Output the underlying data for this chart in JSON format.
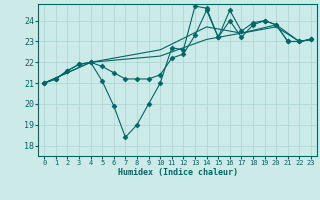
{
  "xlabel": "Humidex (Indice chaleur)",
  "xlim": [
    -0.5,
    23.5
  ],
  "ylim": [
    17.5,
    24.8
  ],
  "yticks": [
    18,
    19,
    20,
    21,
    22,
    23,
    24
  ],
  "xticks": [
    0,
    1,
    2,
    3,
    4,
    5,
    6,
    7,
    8,
    9,
    10,
    11,
    12,
    13,
    14,
    15,
    16,
    17,
    18,
    19,
    20,
    21,
    22,
    23
  ],
  "background_color": "#cceae8",
  "grid_color": "#aad4d0",
  "line_color": "#006666",
  "series": [
    {
      "x": [
        0,
        1,
        2,
        3,
        4,
        5,
        6,
        7,
        8,
        9,
        10,
        11,
        12,
        13,
        14,
        15,
        16,
        17,
        18,
        19,
        20,
        21,
        22,
        23
      ],
      "y": [
        21.0,
        21.2,
        21.6,
        21.9,
        22.0,
        21.1,
        19.9,
        18.4,
        19.0,
        20.0,
        21.0,
        22.7,
        22.6,
        24.7,
        24.6,
        23.2,
        24.5,
        23.5,
        23.9,
        24.0,
        23.8,
        23.0,
        23.0,
        23.1
      ],
      "marker": "D",
      "markersize": 2.5,
      "linewidth": 0.8
    },
    {
      "x": [
        0,
        4,
        10,
        14,
        17,
        20,
        22,
        23
      ],
      "y": [
        21.0,
        22.0,
        22.3,
        23.1,
        23.4,
        23.7,
        23.0,
        23.1
      ],
      "marker": null,
      "markersize": 0,
      "linewidth": 0.8
    },
    {
      "x": [
        0,
        4,
        10,
        14,
        17,
        20,
        22,
        23
      ],
      "y": [
        21.0,
        22.0,
        22.6,
        23.7,
        23.4,
        23.8,
        23.0,
        23.1
      ],
      "marker": null,
      "markersize": 0,
      "linewidth": 0.8
    },
    {
      "x": [
        0,
        1,
        2,
        3,
        4,
        5,
        6,
        7,
        8,
        9,
        10,
        11,
        12,
        13,
        14,
        15,
        16,
        17,
        18,
        19,
        20,
        21,
        22,
        23
      ],
      "y": [
        21.0,
        21.2,
        21.6,
        21.9,
        22.0,
        21.8,
        21.5,
        21.2,
        21.2,
        21.2,
        21.4,
        22.2,
        22.4,
        23.3,
        24.5,
        23.2,
        24.0,
        23.2,
        23.8,
        24.0,
        23.8,
        23.0,
        23.0,
        23.1
      ],
      "marker": "D",
      "markersize": 2.5,
      "linewidth": 0.8
    }
  ]
}
